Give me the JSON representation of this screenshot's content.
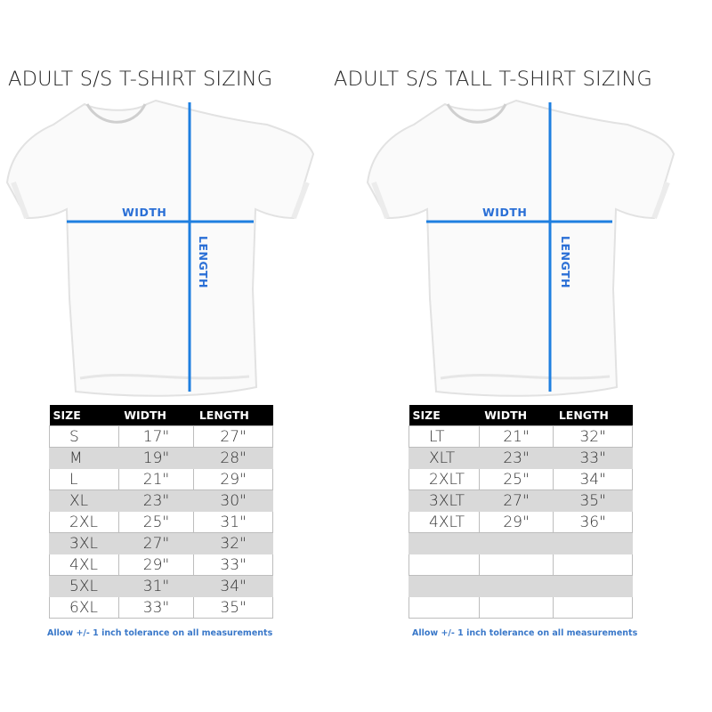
{
  "accent_color": "#1e7fe0",
  "left": {
    "title": "ADULT S/S T-SHIRT SIZING",
    "width_label": "WIDTH",
    "length_label": "LENGTH",
    "headers": [
      "SIZE",
      "WIDTH",
      "LENGTH"
    ],
    "rows": [
      [
        "S",
        "17\"",
        "27\""
      ],
      [
        "M",
        "19\"",
        "28\""
      ],
      [
        "L",
        "21\"",
        "29\""
      ],
      [
        "XL",
        "23\"",
        "30\""
      ],
      [
        "2XL",
        "25\"",
        "31\""
      ],
      [
        "3XL",
        "27\"",
        "32\""
      ],
      [
        "4XL",
        "29\"",
        "33\""
      ],
      [
        "5XL",
        "31\"",
        "34\""
      ],
      [
        "6XL",
        "33\"",
        "35\""
      ]
    ],
    "note": "Allow +/- 1 inch tolerance on all measurements"
  },
  "right": {
    "title": "ADULT S/S TALL T-SHIRT SIZING",
    "width_label": "WIDTH",
    "length_label": "LENGTH",
    "headers": [
      "SIZE",
      "WIDTH",
      "LENGTH"
    ],
    "rows": [
      [
        "LT",
        "21\"",
        "32\""
      ],
      [
        "XLT",
        "23\"",
        "33\""
      ],
      [
        "2XLT",
        "25\"",
        "34\""
      ],
      [
        "3XLT",
        "27\"",
        "35\""
      ],
      [
        "4XLT",
        "29\"",
        "36\""
      ],
      [
        "",
        "",
        ""
      ],
      [
        "",
        "",
        ""
      ],
      [
        "",
        "",
        ""
      ],
      [
        "",
        "",
        ""
      ]
    ],
    "note": "Allow +/- 1 inch tolerance on all measurements"
  }
}
